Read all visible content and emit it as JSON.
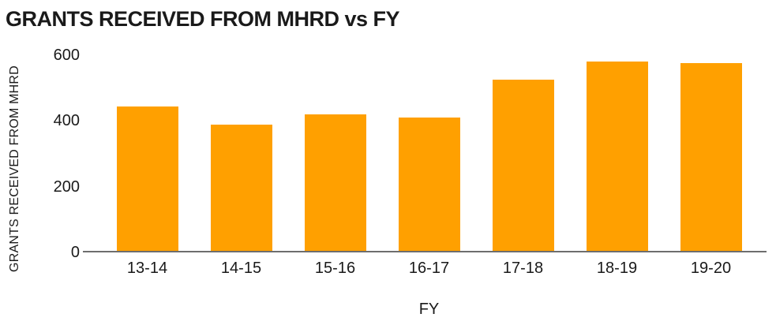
{
  "colors": {
    "bar": "#FFA000",
    "axis_line": "#6e6e6e",
    "text": "#1a1a1a",
    "background": "#ffffff"
  },
  "chart_data": {
    "type": "bar",
    "title": "GRANTS RECEIVED FROM MHRD vs FY",
    "xlabel": "FY",
    "ylabel": "GRANTS RECEIVED FROM MHRD",
    "categories": [
      "13-14",
      "14-15",
      "15-16",
      "16-17",
      "17-18",
      "18-19",
      "19-20"
    ],
    "values": [
      445,
      390,
      420,
      410,
      525,
      580,
      575
    ],
    "ylim": [
      0,
      600
    ],
    "yticks": [
      0,
      200,
      400,
      600
    ],
    "grid": false,
    "legend": false,
    "bar_color": "#FFA000"
  }
}
